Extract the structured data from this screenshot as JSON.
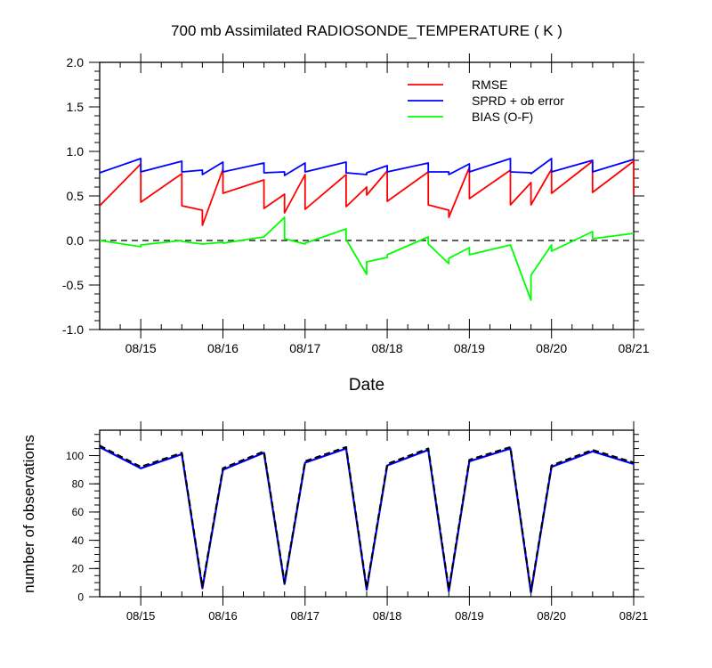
{
  "chart_data": [
    {
      "type": "line",
      "title": "700 mb Assimilated RADIOSONDE_TEMPERATURE ( K )",
      "xlabel": "Date",
      "ylabel": "",
      "xlim": [
        "08/14 12Z",
        "08/21 00Z"
      ],
      "ylim": [
        -1.0,
        2.0
      ],
      "categories": [
        "08/15",
        "08/16",
        "08/17",
        "08/18",
        "08/19",
        "08/20",
        "08/21"
      ],
      "x_tick_labels": [
        "08/15",
        "08/16",
        "08/17",
        "08/18",
        "08/19",
        "08/20",
        "08/21"
      ],
      "y_tick_labels": [
        "-1.0",
        "-0.5",
        "0.0",
        "0.5",
        "1.0",
        "1.5",
        "2.0"
      ],
      "y_ticks": [
        -1.0,
        -0.5,
        0.0,
        0.5,
        1.0,
        1.5,
        2.0
      ],
      "reference_line": {
        "y": 0.0,
        "style": "dashed",
        "color": "#000000"
      },
      "legend_position": "top-right",
      "grid": false,
      "series": [
        {
          "name": "RMSE",
          "color": "#ff0000",
          "x": [
            "08/14 12Z",
            "08/15 00Z",
            "08/15 00Z",
            "08/15 12Z",
            "08/15 12Z",
            "08/15 18Z",
            "08/15 18Z",
            "08/16 00Z",
            "08/16 00Z",
            "08/16 12Z",
            "08/16 12Z",
            "08/16 18Z",
            "08/16 18Z",
            "08/17 00Z",
            "08/17 00Z",
            "08/17 12Z",
            "08/17 12Z",
            "08/17 18Z",
            "08/17 18Z",
            "08/18 00Z",
            "08/18 00Z",
            "08/18 12Z",
            "08/18 12Z",
            "08/18 18Z",
            "08/18 18Z",
            "08/19 00Z",
            "08/19 00Z",
            "08/19 12Z",
            "08/19 12Z",
            "08/19 18Z",
            "08/19 18Z",
            "08/20 00Z",
            "08/20 00Z",
            "08/20 12Z",
            "08/20 12Z",
            "08/21 00Z",
            "08/21 00Z"
          ],
          "y": [
            0.39,
            0.86,
            0.43,
            0.75,
            0.39,
            0.34,
            0.17,
            0.8,
            0.53,
            0.68,
            0.36,
            0.52,
            0.31,
            0.74,
            0.35,
            0.74,
            0.38,
            0.6,
            0.51,
            0.78,
            0.44,
            0.77,
            0.4,
            0.34,
            0.26,
            0.82,
            0.47,
            0.79,
            0.4,
            0.65,
            0.4,
            0.8,
            0.53,
            0.89,
            0.54,
            0.89,
            0.52
          ]
        },
        {
          "name": "SPRD + ob error",
          "color": "#0000ff",
          "x": [
            "08/14 12Z",
            "08/15 00Z",
            "08/15 00Z",
            "08/15 12Z",
            "08/15 12Z",
            "08/15 18Z",
            "08/15 18Z",
            "08/16 00Z",
            "08/16 00Z",
            "08/16 12Z",
            "08/16 12Z",
            "08/16 18Z",
            "08/16 18Z",
            "08/17 00Z",
            "08/17 00Z",
            "08/17 12Z",
            "08/17 12Z",
            "08/17 18Z",
            "08/17 18Z",
            "08/18 00Z",
            "08/18 00Z",
            "08/18 12Z",
            "08/18 12Z",
            "08/18 18Z",
            "08/18 18Z",
            "08/19 00Z",
            "08/19 00Z",
            "08/19 12Z",
            "08/19 12Z",
            "08/19 18Z",
            "08/19 18Z",
            "08/20 00Z",
            "08/20 00Z",
            "08/20 12Z",
            "08/20 12Z",
            "08/21 00Z"
          ],
          "y": [
            0.76,
            0.92,
            0.77,
            0.89,
            0.77,
            0.79,
            0.74,
            0.88,
            0.77,
            0.87,
            0.76,
            0.77,
            0.73,
            0.87,
            0.77,
            0.88,
            0.76,
            0.74,
            0.76,
            0.84,
            0.77,
            0.87,
            0.77,
            0.77,
            0.74,
            0.86,
            0.77,
            0.92,
            0.77,
            0.76,
            0.75,
            0.92,
            0.77,
            0.9,
            0.77,
            0.91
          ]
        },
        {
          "name": "BIAS (O-F)",
          "color": "#00ff00",
          "x": [
            "08/14 12Z",
            "08/15 00Z",
            "08/15 00Z",
            "08/15 12Z",
            "08/15 12Z",
            "08/15 18Z",
            "08/15 18Z",
            "08/16 00Z",
            "08/16 00Z",
            "08/16 12Z",
            "08/16 12Z",
            "08/16 18Z",
            "08/16 18Z",
            "08/17 00Z",
            "08/17 00Z",
            "08/17 12Z",
            "08/17 12Z",
            "08/17 18Z",
            "08/17 18Z",
            "08/18 00Z",
            "08/18 00Z",
            "08/18 12Z",
            "08/18 12Z",
            "08/18 18Z",
            "08/18 18Z",
            "08/19 00Z",
            "08/19 00Z",
            "08/19 12Z",
            "08/19 12Z",
            "08/19 18Z",
            "08/19 18Z",
            "08/20 00Z",
            "08/20 00Z",
            "08/20 12Z",
            "08/20 12Z",
            "08/21 00Z"
          ],
          "y": [
            0.0,
            -0.07,
            -0.05,
            0.0,
            -0.01,
            -0.04,
            -0.04,
            -0.02,
            -0.03,
            0.04,
            0.04,
            0.26,
            0.02,
            -0.04,
            -0.03,
            0.13,
            0.01,
            -0.38,
            -0.24,
            -0.19,
            -0.16,
            0.04,
            -0.04,
            -0.26,
            -0.2,
            -0.08,
            -0.16,
            -0.05,
            -0.05,
            -0.67,
            -0.39,
            -0.05,
            -0.12,
            0.1,
            0.02,
            0.08
          ]
        }
      ]
    },
    {
      "type": "line",
      "title": "",
      "xlabel": "",
      "ylabel": "number of observations",
      "xlim": [
        "08/14 12Z",
        "08/21 00Z"
      ],
      "ylim": [
        0,
        118
      ],
      "categories": [
        "08/15",
        "08/16",
        "08/17",
        "08/18",
        "08/19",
        "08/20",
        "08/21"
      ],
      "x_tick_labels": [
        "08/15",
        "08/16",
        "08/17",
        "08/18",
        "08/19",
        "08/20",
        "08/21"
      ],
      "y_tick_labels": [
        "0",
        "20",
        "40",
        "60",
        "80",
        "100"
      ],
      "y_ticks": [
        0,
        20,
        40,
        60,
        80,
        100
      ],
      "grid": false,
      "series": [
        {
          "color": "#0000ff",
          "style": "solid",
          "x": [
            "08/14 12Z",
            "08/15 00Z",
            "08/15 12Z",
            "08/15 18Z",
            "08/16 00Z",
            "08/16 12Z",
            "08/16 18Z",
            "08/17 00Z",
            "08/17 12Z",
            "08/17 18Z",
            "08/18 00Z",
            "08/18 12Z",
            "08/18 18Z",
            "08/19 00Z",
            "08/19 12Z",
            "08/19 18Z",
            "08/20 00Z",
            "08/20 12Z",
            "08/21 00Z"
          ],
          "y": [
            106,
            91,
            101,
            6,
            90,
            102,
            9,
            95,
            105,
            5,
            93,
            104,
            4,
            96,
            105,
            3,
            92,
            103,
            94
          ]
        },
        {
          "color": "#000000",
          "style": "dashed",
          "x": [
            "08/14 12Z",
            "08/15 00Z",
            "08/15 12Z",
            "08/15 18Z",
            "08/16 00Z",
            "08/16 12Z",
            "08/16 18Z",
            "08/17 00Z",
            "08/17 12Z",
            "08/17 18Z",
            "08/18 00Z",
            "08/18 12Z",
            "08/18 18Z",
            "08/19 00Z",
            "08/19 12Z",
            "08/19 18Z",
            "08/20 00Z",
            "08/20 12Z",
            "08/21 00Z"
          ],
          "y": [
            107,
            92,
            102,
            7,
            91,
            103,
            10,
            96,
            106,
            6,
            94,
            105,
            5,
            97,
            106,
            4,
            93,
            104,
            95
          ]
        }
      ]
    }
  ]
}
